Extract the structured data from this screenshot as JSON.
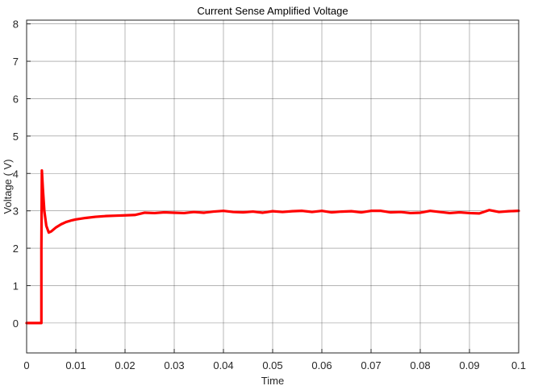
{
  "chart_data": {
    "type": "line",
    "title": "Current Sense Amplified Voltage",
    "xlabel": "Time",
    "ylabel": "Voltage ( V)",
    "xlim": [
      0,
      0.1
    ],
    "ylim": [
      -0.8,
      8.1
    ],
    "xticks": [
      0,
      0.01,
      0.02,
      0.03,
      0.04,
      0.05,
      0.06,
      0.07,
      0.08,
      0.09,
      0.1
    ],
    "xtick_labels": [
      "0",
      "0.01",
      "0.02",
      "0.03",
      "0.04",
      "0.05",
      "0.06",
      "0.07",
      "0.08",
      "0.09",
      "0.1"
    ],
    "yticks": [
      0,
      1,
      2,
      3,
      4,
      5,
      6,
      7,
      8
    ],
    "ytick_labels": [
      "0",
      "1",
      "2",
      "3",
      "4",
      "5",
      "6",
      "7",
      "8"
    ],
    "grid": true,
    "line_color": "#ff0000",
    "series": [
      {
        "x": [
          0,
          0.003,
          0.003,
          0.0031,
          0.0033,
          0.0036,
          0.004,
          0.0045,
          0.005,
          0.006,
          0.007,
          0.008,
          0.009,
          0.01,
          0.012,
          0.014,
          0.016,
          0.018,
          0.02,
          0.022,
          0.024,
          0.026,
          0.028,
          0.03,
          0.032,
          0.034,
          0.036,
          0.038,
          0.04,
          0.042,
          0.044,
          0.046,
          0.048,
          0.05,
          0.052,
          0.054,
          0.056,
          0.058,
          0.06,
          0.062,
          0.064,
          0.066,
          0.068,
          0.07,
          0.072,
          0.074,
          0.076,
          0.078,
          0.08,
          0.082,
          0.084,
          0.086,
          0.088,
          0.09,
          0.092,
          0.094,
          0.096,
          0.098,
          0.1
        ],
        "y": [
          0,
          0,
          2.0,
          4.08,
          3.6,
          3.0,
          2.6,
          2.42,
          2.45,
          2.56,
          2.64,
          2.7,
          2.74,
          2.77,
          2.81,
          2.84,
          2.86,
          2.87,
          2.88,
          2.89,
          2.95,
          2.94,
          2.96,
          2.95,
          2.94,
          2.97,
          2.95,
          2.98,
          3.0,
          2.97,
          2.96,
          2.98,
          2.95,
          2.99,
          2.97,
          2.99,
          3.0,
          2.97,
          3.0,
          2.96,
          2.98,
          2.99,
          2.96,
          3.0,
          3.0,
          2.96,
          2.97,
          2.94,
          2.95,
          3.0,
          2.97,
          2.94,
          2.96,
          2.94,
          2.93,
          3.02,
          2.97,
          2.99,
          3.0
        ]
      }
    ]
  }
}
